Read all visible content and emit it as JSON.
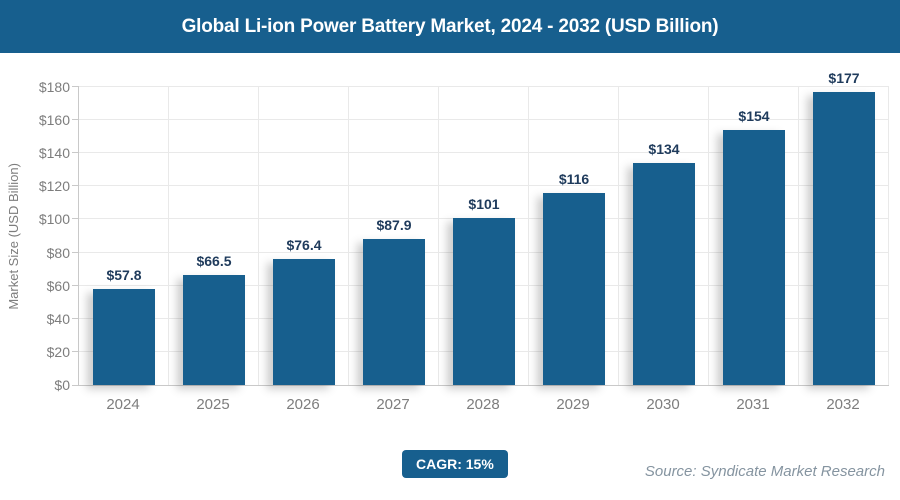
{
  "header": {
    "title": "Global Li-ion Power Battery Market, 2024 - 2032 (USD Billion)"
  },
  "chart_data": {
    "type": "bar",
    "title": "Global Li-ion Power Battery Market, 2024 - 2032 (USD Billion)",
    "categories": [
      "2024",
      "2025",
      "2026",
      "2027",
      "2028",
      "2029",
      "2030",
      "2031",
      "2032"
    ],
    "values": [
      57.8,
      66.5,
      76.4,
      87.9,
      101,
      116,
      134,
      154,
      177
    ],
    "value_labels": [
      "$57.8",
      "$66.5",
      "$76.4",
      "$87.9",
      "$101",
      "$116",
      "$134",
      "$154",
      "$177"
    ],
    "xlabel": "",
    "ylabel": "Market Size (USD Billion)",
    "ylim": [
      0,
      180
    ],
    "ytick_interval": 20,
    "ytick_labels": [
      "$0",
      "$20",
      "$40",
      "$60",
      "$80",
      "$100",
      "$120",
      "$140",
      "$160",
      "$180"
    ],
    "grid": "horizontal and vertical light-gray gridlines",
    "legend": "none"
  },
  "footer": {
    "cagr_label": "CAGR: 15%",
    "source": "Source: Syndicate Market Research"
  },
  "colors": {
    "primary_blue": "#175f8e",
    "value_label_navy": "#1f3b5c",
    "grid_gray": "#e9e9e9",
    "axis_gray": "#c9c9c9",
    "tick_text_gray": "#7d7d7d",
    "source_gray": "#8594a0"
  }
}
